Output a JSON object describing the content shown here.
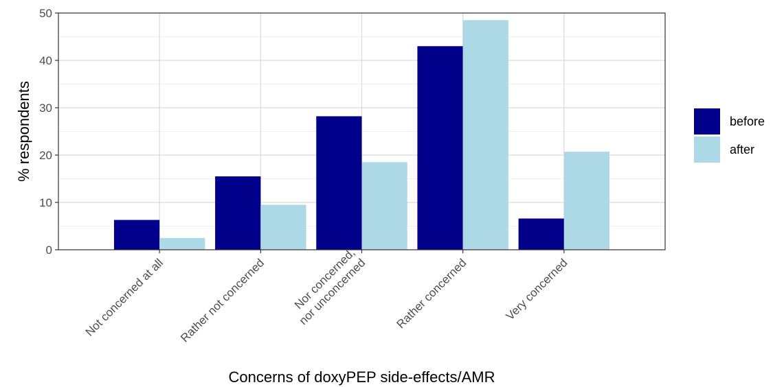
{
  "chart_data": {
    "type": "bar",
    "xlabel": "Concerns of doxyPEP side-effects/AMR",
    "ylabel": "% respondents",
    "ylim": [
      0,
      50
    ],
    "yticks": [
      0,
      10,
      20,
      30,
      40,
      50
    ],
    "grid": true,
    "legend_position": "right",
    "categories": [
      "Not concerned at all",
      "Rather not concerned",
      "Nor concerned,\nnor unconcerned",
      "Rather concerned",
      "Very concerned"
    ],
    "series": [
      {
        "name": "before",
        "color": "#00008b",
        "values": [
          6.3,
          15.5,
          28.2,
          43.0,
          6.6
        ]
      },
      {
        "name": "after",
        "color": "#add8e6",
        "values": [
          2.5,
          9.5,
          18.5,
          48.5,
          20.7
        ]
      }
    ]
  }
}
